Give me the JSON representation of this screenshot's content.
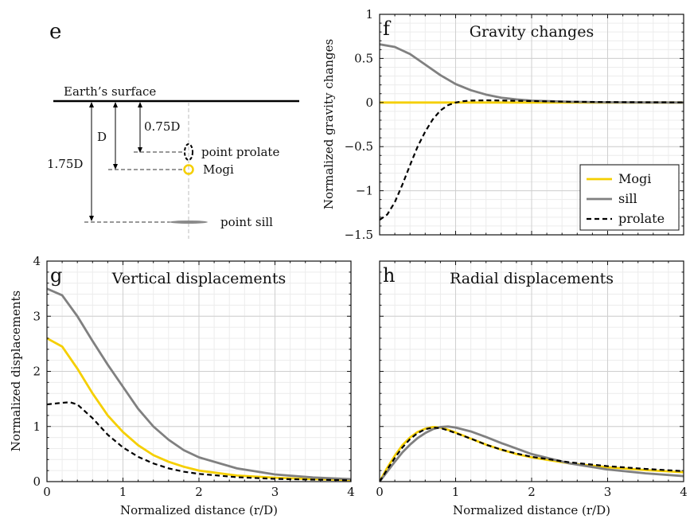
{
  "colors": {
    "mogi": "#f5cf00",
    "sill": "#808080",
    "prolate": "#000000"
  },
  "schematic": {
    "panel_letter": "e",
    "surface_label": "Earth’s surface",
    "depth_labels": [
      "1.75D",
      "D",
      "0.75D"
    ],
    "source_labels": [
      "point prolate",
      "Mogi",
      "point sill"
    ]
  },
  "chart_data": [
    {
      "id": "f",
      "type": "line",
      "panel_letter": "f",
      "title": "Gravity changes",
      "xlabel": "",
      "ylabel": "Normalized gravity changes",
      "xlim": [
        0,
        4
      ],
      "ylim": [
        -1.5,
        1
      ],
      "xticks": [
        0,
        1,
        2,
        3,
        4
      ],
      "yticks": [
        -1.5,
        -1,
        -0.5,
        0,
        0.5,
        1
      ],
      "ytick_labels": [
        "−1.5",
        "−1",
        "−0.5",
        "0",
        "0.5",
        "1"
      ],
      "show_xtick_labels": false,
      "show_ytick_labels": true,
      "grid": true,
      "legend": "bottom-right",
      "series": [
        {
          "name": "Mogi",
          "style": "solid",
          "x": [
            0,
            4
          ],
          "y": [
            0,
            0
          ]
        },
        {
          "name": "sill",
          "style": "solid",
          "x": [
            0,
            0.2,
            0.4,
            0.6,
            0.8,
            1.0,
            1.2,
            1.4,
            1.6,
            1.8,
            2.0,
            2.5,
            3.0,
            3.5,
            4.0
          ],
          "y": [
            0.66,
            0.63,
            0.55,
            0.43,
            0.31,
            0.21,
            0.14,
            0.09,
            0.055,
            0.035,
            0.022,
            0.008,
            0.003,
            0.001,
            0.0
          ]
        },
        {
          "name": "prolate",
          "style": "dashed",
          "x": [
            0,
            0.1,
            0.2,
            0.3,
            0.4,
            0.5,
            0.6,
            0.7,
            0.8,
            0.9,
            1.0,
            1.1,
            1.2,
            1.4,
            1.6,
            2.0,
            2.5,
            3.0,
            3.5,
            4.0
          ],
          "y": [
            -1.33,
            -1.27,
            -1.13,
            -0.93,
            -0.71,
            -0.5,
            -0.33,
            -0.19,
            -0.09,
            -0.03,
            0.0,
            0.015,
            0.022,
            0.025,
            0.023,
            0.016,
            0.009,
            0.005,
            0.003,
            0.002
          ]
        }
      ]
    },
    {
      "id": "g",
      "type": "line",
      "panel_letter": "g",
      "title": "Vertical displacements",
      "xlabel": "Normalized distance (r/D)",
      "ylabel": "Normalized displacements",
      "xlim": [
        0,
        4
      ],
      "ylim": [
        0,
        4
      ],
      "xticks": [
        0,
        1,
        2,
        3,
        4
      ],
      "yticks": [
        0,
        1,
        2,
        3,
        4
      ],
      "show_xtick_labels": true,
      "show_ytick_labels": true,
      "grid": true,
      "series": [
        {
          "name": "Mogi",
          "style": "solid",
          "x": [
            0,
            0.2,
            0.4,
            0.6,
            0.8,
            1.0,
            1.2,
            1.4,
            1.6,
            1.8,
            2.0,
            2.5,
            3.0,
            3.5,
            4.0
          ],
          "y": [
            2.6,
            2.45,
            2.05,
            1.6,
            1.2,
            0.9,
            0.66,
            0.48,
            0.36,
            0.27,
            0.2,
            0.11,
            0.07,
            0.045,
            0.03
          ]
        },
        {
          "name": "sill",
          "style": "solid",
          "x": [
            0,
            0.2,
            0.4,
            0.6,
            0.8,
            1.0,
            1.2,
            1.4,
            1.6,
            1.8,
            2.0,
            2.5,
            3.0,
            3.5,
            4.0
          ],
          "y": [
            3.5,
            3.38,
            3.0,
            2.55,
            2.12,
            1.72,
            1.32,
            1.0,
            0.76,
            0.57,
            0.44,
            0.24,
            0.13,
            0.075,
            0.045
          ]
        },
        {
          "name": "prolate",
          "style": "dashed",
          "x": [
            0,
            0.2,
            0.3,
            0.4,
            0.6,
            0.8,
            1.0,
            1.2,
            1.4,
            1.6,
            1.8,
            2.0,
            2.5,
            3.0,
            3.5,
            4.0
          ],
          "y": [
            1.4,
            1.43,
            1.44,
            1.4,
            1.15,
            0.85,
            0.62,
            0.45,
            0.33,
            0.24,
            0.18,
            0.14,
            0.08,
            0.05,
            0.035,
            0.025
          ]
        }
      ]
    },
    {
      "id": "h",
      "type": "line",
      "panel_letter": "h",
      "title": "Radial displacements",
      "xlabel": "Normalized distance (r/D)",
      "ylabel": "",
      "xlim": [
        0,
        4
      ],
      "ylim": [
        0,
        4
      ],
      "xticks": [
        0,
        1,
        2,
        3,
        4
      ],
      "yticks": [
        0,
        1,
        2,
        3,
        4
      ],
      "show_xtick_labels": true,
      "show_ytick_labels": false,
      "grid": true,
      "series": [
        {
          "name": "Mogi",
          "style": "solid",
          "x": [
            0,
            0.1,
            0.2,
            0.3,
            0.4,
            0.5,
            0.6,
            0.7,
            0.8,
            0.9,
            1.0,
            1.2,
            1.4,
            1.6,
            1.8,
            2.0,
            2.5,
            3.0,
            3.5,
            4.0
          ],
          "y": [
            0,
            0.25,
            0.47,
            0.66,
            0.8,
            0.9,
            0.96,
            0.99,
            0.98,
            0.94,
            0.89,
            0.78,
            0.67,
            0.58,
            0.5,
            0.44,
            0.33,
            0.26,
            0.21,
            0.17
          ]
        },
        {
          "name": "sill",
          "style": "solid",
          "x": [
            0,
            0.1,
            0.2,
            0.3,
            0.4,
            0.5,
            0.6,
            0.7,
            0.8,
            0.9,
            1.0,
            1.2,
            1.4,
            1.6,
            1.8,
            2.0,
            2.5,
            3.0,
            3.5,
            4.0
          ],
          "y": [
            0,
            0.18,
            0.36,
            0.53,
            0.67,
            0.79,
            0.88,
            0.95,
            0.99,
            1.0,
            0.98,
            0.91,
            0.81,
            0.7,
            0.6,
            0.5,
            0.33,
            0.22,
            0.15,
            0.1
          ]
        },
        {
          "name": "prolate",
          "style": "dashed",
          "x": [
            0,
            0.1,
            0.2,
            0.3,
            0.4,
            0.5,
            0.6,
            0.7,
            0.8,
            0.9,
            1.0,
            1.2,
            1.4,
            1.6,
            1.8,
            2.0,
            2.5,
            3.0,
            3.5,
            4.0
          ],
          "y": [
            0,
            0.22,
            0.43,
            0.62,
            0.77,
            0.88,
            0.95,
            0.98,
            0.97,
            0.93,
            0.88,
            0.78,
            0.67,
            0.58,
            0.51,
            0.45,
            0.35,
            0.28,
            0.23,
            0.19
          ]
        }
      ]
    }
  ]
}
